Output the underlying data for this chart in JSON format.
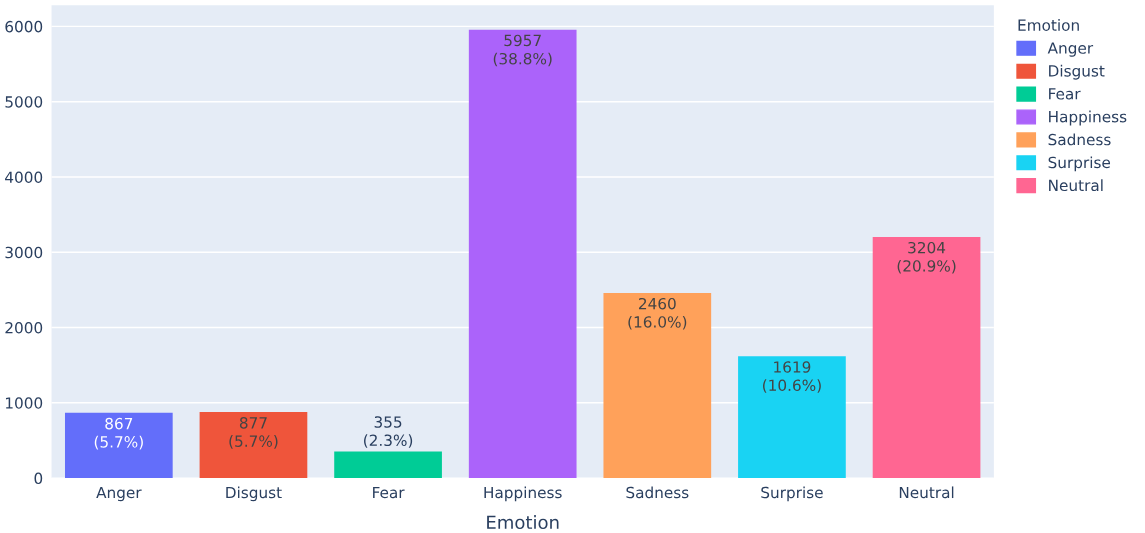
{
  "chart_data": {
    "type": "bar",
    "xlabel": "Emotion",
    "legend_title": "Emotion",
    "legend": "right",
    "grid": "y",
    "categories": [
      "Anger",
      "Disgust",
      "Fear",
      "Happiness",
      "Sadness",
      "Surprise",
      "Neutral"
    ],
    "ylim": [
      0,
      6280
    ],
    "yticks": [
      0,
      1000,
      2000,
      3000,
      4000,
      5000,
      6000
    ],
    "series": [
      {
        "name": "Anger",
        "color": "#636efa",
        "values": [
          867,
          null,
          null,
          null,
          null,
          null,
          null
        ],
        "value_labels": [
          "867\n(5.7%)",
          null,
          null,
          null,
          null,
          null,
          null
        ]
      },
      {
        "name": "Disgust",
        "color": "#ef553b",
        "values": [
          null,
          877,
          null,
          null,
          null,
          null,
          null
        ],
        "value_labels": [
          null,
          "877\n(5.7%)",
          null,
          null,
          null,
          null,
          null
        ]
      },
      {
        "name": "Fear",
        "color": "#00cc96",
        "values": [
          null,
          null,
          355,
          null,
          null,
          null,
          null
        ],
        "value_labels": [
          null,
          null,
          "355\n(2.3%)",
          null,
          null,
          null,
          null
        ]
      },
      {
        "name": "Happiness",
        "color": "#ab63fa",
        "values": [
          null,
          null,
          null,
          5957,
          null,
          null,
          null
        ],
        "value_labels": [
          null,
          null,
          null,
          "5957\n(38.8%)",
          null,
          null,
          null
        ]
      },
      {
        "name": "Sadness",
        "color": "#ffa15a",
        "values": [
          null,
          null,
          null,
          null,
          2460,
          null,
          null
        ],
        "value_labels": [
          null,
          null,
          null,
          null,
          "2460\n(16.0%)",
          null,
          null
        ]
      },
      {
        "name": "Surprise",
        "color": "#19d3f3",
        "values": [
          null,
          null,
          null,
          null,
          null,
          1619,
          null
        ],
        "value_labels": [
          null,
          null,
          null,
          null,
          null,
          "1619\n(10.6%)",
          null
        ]
      },
      {
        "name": "Neutral",
        "color": "#ff6692",
        "values": [
          null,
          null,
          null,
          null,
          null,
          null,
          3204
        ],
        "value_labels": [
          null,
          null,
          null,
          null,
          null,
          null,
          "3204\n(20.9%)"
        ]
      }
    ]
  }
}
